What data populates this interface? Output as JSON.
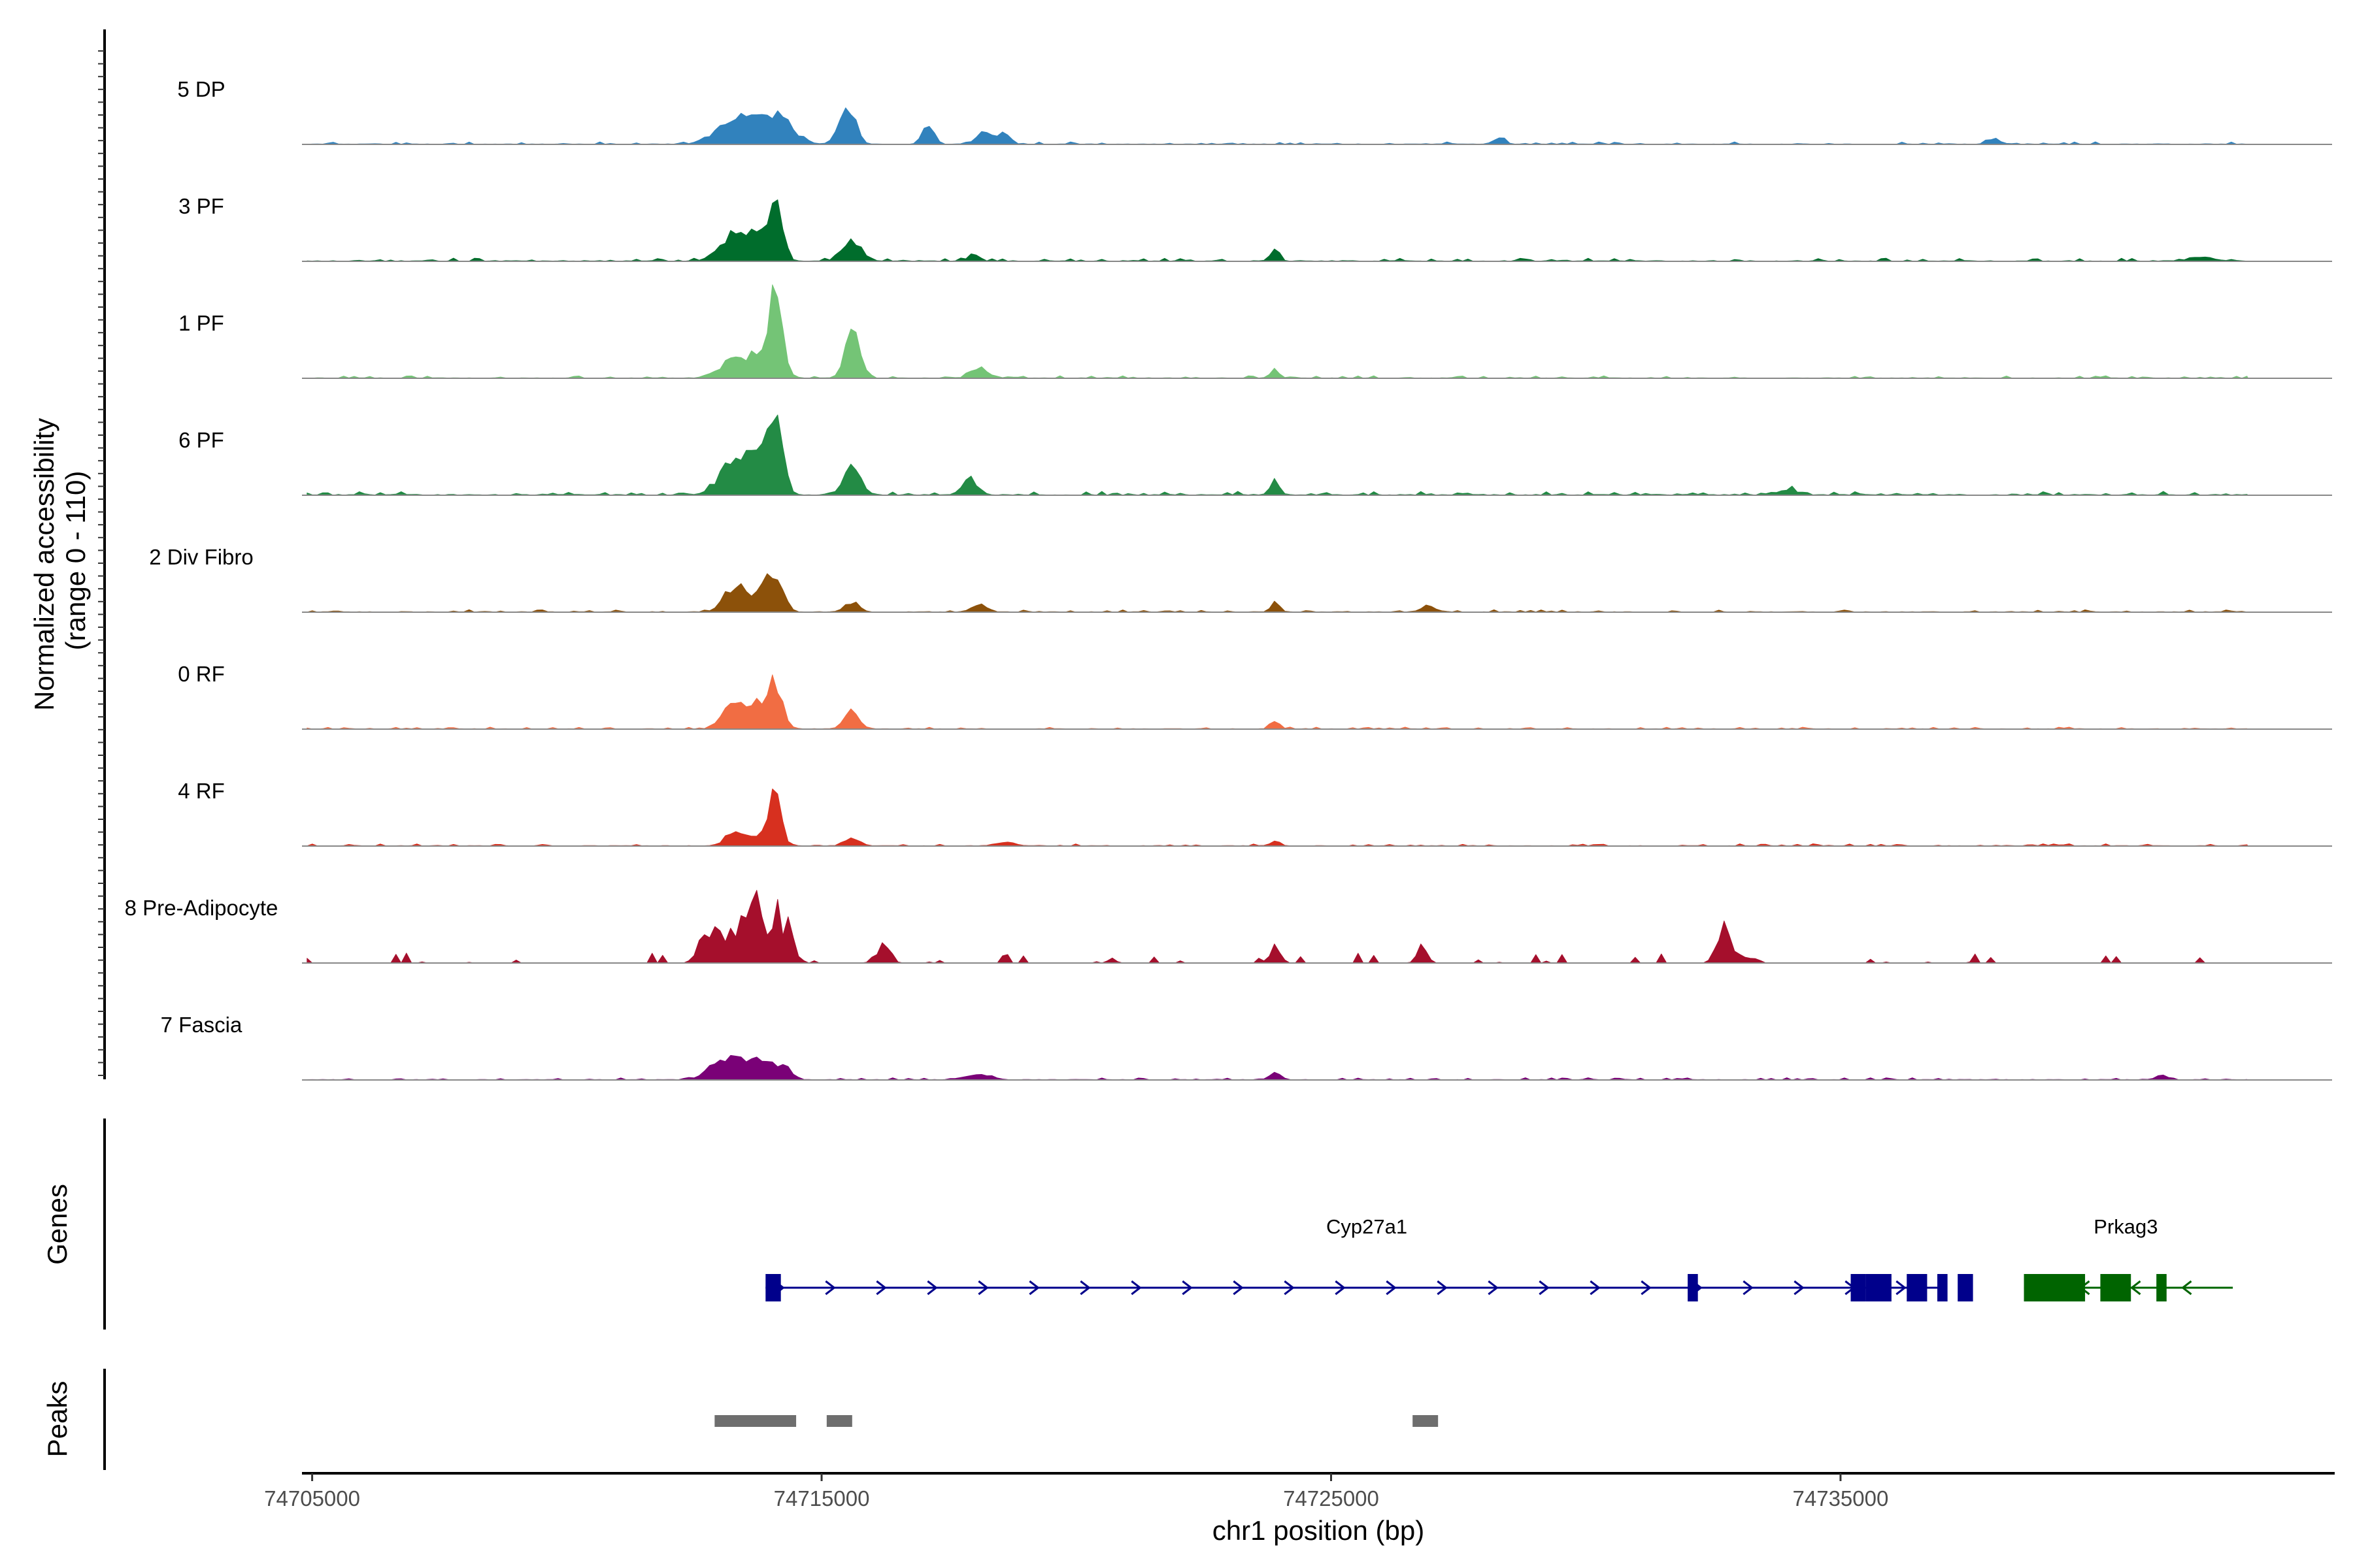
{
  "chart_data": {
    "type": "coverage-track",
    "y_axis_title_line1": "Normalized accessibility",
    "y_axis_title_line2": "(range 0 - 110)",
    "ylim": [
      0,
      110
    ],
    "x_axis_title": "chr1 position (bp)",
    "xlim": [
      74704800,
      74744700
    ],
    "x_ticks": [
      74705000,
      74715000,
      74725000,
      74735000
    ],
    "x_tick_labels": [
      "74705000",
      "74715000",
      "74725000",
      "74735000"
    ],
    "data_start": 74704900,
    "data_end": 74743000,
    "tracks": [
      {
        "name": "5 DP",
        "color": "#3182bd",
        "baseline": 1.0,
        "peaks": [
          [
            74713300,
            500,
            26
          ],
          [
            74713900,
            400,
            22
          ],
          [
            74714300,
            300,
            18
          ],
          [
            74715500,
            220,
            40
          ],
          [
            74717100,
            150,
            22
          ],
          [
            74718200,
            200,
            14
          ],
          [
            74718600,
            150,
            12
          ],
          [
            74728300,
            150,
            8
          ],
          [
            74738000,
            200,
            5
          ]
        ]
      },
      {
        "name": "3 PF",
        "color": "#006d2c",
        "baseline": 1.3,
        "peaks": [
          [
            74713300,
            400,
            28
          ],
          [
            74713800,
            300,
            24
          ],
          [
            74714100,
            180,
            55
          ],
          [
            74715600,
            250,
            22
          ],
          [
            74718000,
            150,
            8
          ],
          [
            74723900,
            120,
            12
          ],
          [
            74742100,
            300,
            4
          ]
        ]
      },
      {
        "name": "1 PF",
        "color": "#74c476",
        "baseline": 1.0,
        "peaks": [
          [
            74713300,
            400,
            20
          ],
          [
            74713800,
            300,
            18
          ],
          [
            74714100,
            200,
            85
          ],
          [
            74715600,
            200,
            52
          ],
          [
            74718100,
            250,
            10
          ],
          [
            74723900,
            120,
            9
          ]
        ]
      },
      {
        "name": "6 PF",
        "color": "#238b45",
        "baseline": 1.6,
        "peaks": [
          [
            74713300,
            400,
            35
          ],
          [
            74713800,
            300,
            32
          ],
          [
            74714100,
            200,
            76
          ],
          [
            74715600,
            220,
            34
          ],
          [
            74717900,
            200,
            18
          ],
          [
            74723900,
            120,
            18
          ],
          [
            74734000,
            300,
            5
          ]
        ]
      },
      {
        "name": "2 Div Fibro",
        "color": "#8c510a",
        "baseline": 1.0,
        "peaks": [
          [
            74713300,
            300,
            26
          ],
          [
            74713900,
            300,
            20
          ],
          [
            74714100,
            200,
            30
          ],
          [
            74715600,
            200,
            10
          ],
          [
            74718100,
            200,
            8
          ],
          [
            74723900,
            120,
            10
          ],
          [
            74726900,
            200,
            6
          ]
        ]
      },
      {
        "name": "0 RF",
        "color": "#f16d43",
        "baseline": 0.8,
        "peaks": [
          [
            74713300,
            300,
            30
          ],
          [
            74713800,
            300,
            24
          ],
          [
            74714100,
            200,
            40
          ],
          [
            74715600,
            200,
            20
          ],
          [
            74723900,
            120,
            10
          ]
        ]
      },
      {
        "name": "4 RF",
        "color": "#d7301f",
        "baseline": 0.9,
        "peaks": [
          [
            74713300,
            250,
            16
          ],
          [
            74713800,
            250,
            12
          ],
          [
            74714100,
            150,
            58
          ],
          [
            74715600,
            200,
            8
          ],
          [
            74718600,
            250,
            4
          ],
          [
            74723900,
            120,
            6
          ]
        ]
      },
      {
        "name": "8 Pre-Adipocyte",
        "color": "#a50f2c",
        "baseline": 0,
        "peaks": [
          [
            74712800,
            250,
            40
          ],
          [
            74713400,
            300,
            42
          ],
          [
            74713800,
            250,
            52
          ],
          [
            74714200,
            250,
            56
          ],
          [
            74716200,
            200,
            20
          ],
          [
            74723900,
            150,
            18
          ],
          [
            74726800,
            150,
            18
          ],
          [
            74732700,
            200,
            36
          ],
          [
            74733200,
            200,
            10
          ]
        ]
      },
      {
        "name": "7 Fascia",
        "color": "#7a0177",
        "baseline": 0.9,
        "peaks": [
          [
            74713100,
            400,
            22
          ],
          [
            74713700,
            350,
            18
          ],
          [
            74714200,
            250,
            14
          ],
          [
            74718100,
            300,
            6
          ],
          [
            74723900,
            150,
            8
          ],
          [
            74741300,
            150,
            5
          ]
        ]
      }
    ],
    "genes_label": "Genes",
    "genes": [
      {
        "name": "Cyp27a1",
        "strand": "+",
        "start": 74713900,
        "end": 74737000,
        "color": "#00008b",
        "label_pos": 74725700,
        "exons": [
          [
            74713900,
            74714200
          ],
          [
            74732000,
            74732200
          ],
          [
            74735200,
            74735500
          ],
          [
            74735500,
            74736000
          ],
          [
            74736300,
            74736700
          ],
          [
            74736900,
            74737100
          ],
          [
            74737300,
            74737600
          ]
        ]
      },
      {
        "name": "Prkag3",
        "strand": "-",
        "start": 74738600,
        "end": 74742700,
        "color": "#006400",
        "label_pos": 74740600,
        "exons": [
          [
            74738600,
            74739800
          ],
          [
            74740100,
            74740700
          ],
          [
            74741200,
            74741400
          ]
        ]
      }
    ],
    "peaks_label": "Peaks",
    "peak_regions": [
      [
        74712900,
        74714500
      ],
      [
        74715100,
        74715600
      ],
      [
        74726600,
        74727100
      ]
    ],
    "peak_color": "#6e6e6e"
  }
}
